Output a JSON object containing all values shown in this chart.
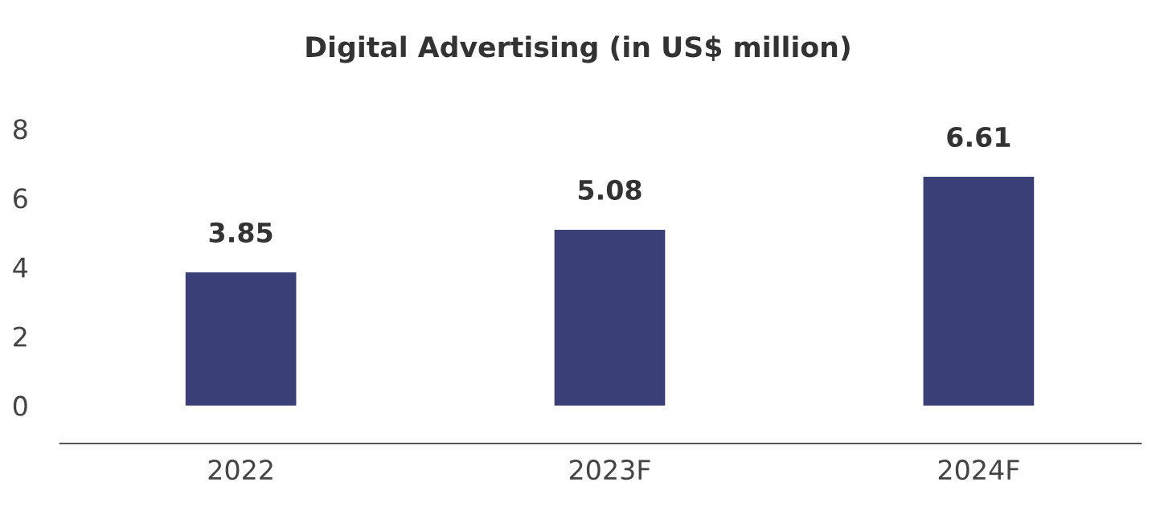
{
  "chart_data": {
    "type": "bar",
    "title": "Digital Advertising (in US$ million)",
    "categories": [
      "2022",
      "2023F",
      "2024F"
    ],
    "values": [
      3.85,
      5.08,
      6.61
    ],
    "color": "#3a3f78",
    "ylim": [
      -1.1,
      8
    ],
    "yticks": [
      0,
      2,
      4,
      6,
      8
    ],
    "data_labels": true,
    "grid": false,
    "legend": false
  }
}
